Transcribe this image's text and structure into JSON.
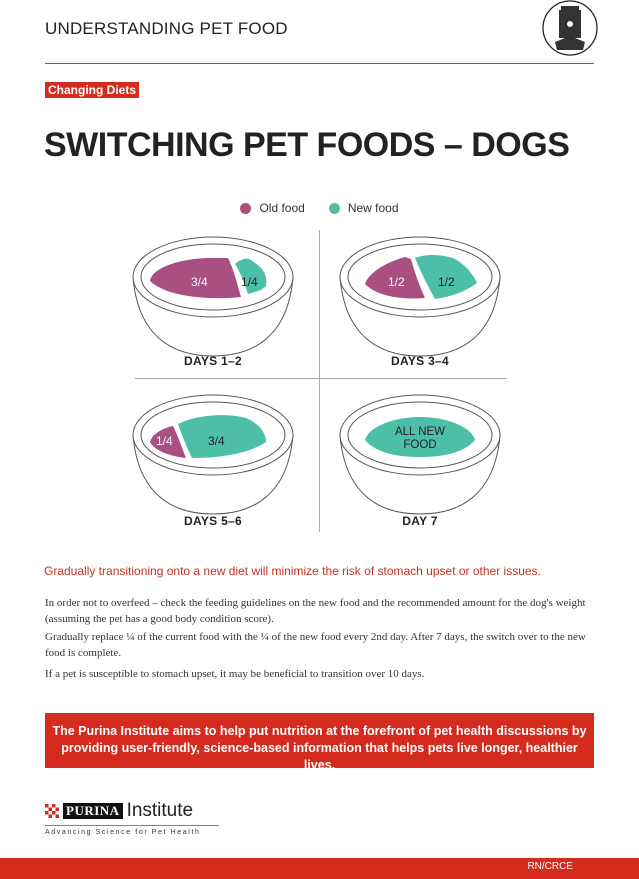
{
  "header": {
    "title": "UNDERSTANDING PET FOOD",
    "icon": "pet-food-bag-icon"
  },
  "badge": "Changing Diets",
  "title": "SWITCHING PET FOODS – DOGS",
  "legend": [
    {
      "label": "Old food",
      "color": "#a94f82"
    },
    {
      "label": "New food",
      "color": "#4dbfa9"
    }
  ],
  "stages": [
    {
      "label": "DAYS 1–2",
      "old": "3/4",
      "new": "1/4",
      "old_fraction": 0.75
    },
    {
      "label": "DAYS 3–4",
      "old": "1/2",
      "new": "1/2",
      "old_fraction": 0.5
    },
    {
      "label": "DAYS 5–6",
      "old": "1/4",
      "new": "3/4",
      "old_fraction": 0.25
    },
    {
      "label": "DAY 7",
      "all": "ALL NEW FOOD",
      "old_fraction": 0
    }
  ],
  "lead": "Gradually transitioning onto a new diet will minimize the risk of stomach upset or other issues.",
  "paragraphs": [
    "In order not to overfeed – check the feeding guidelines on the new food and the recommended amount for the dog's weight (assuming the pet has a good body condition score).",
    "Gradually replace ¼ of the current food with the ¼ of the new food every 2nd day. After 7 days, the switch over to the new food is complete.",
    "If a pet is susceptible to stomach upset, it may be beneficial to transition over 10 days."
  ],
  "callout": "The Purina Institute aims to help put nutrition at the forefront of pet health discussions by providing user-friendly, science-based information that helps pets live longer, healthier lives.",
  "logo": {
    "brand": "PURINA",
    "name": "Institute",
    "tagline": "Advancing Science for Pet Health"
  },
  "footer": {
    "code": "RN/CRCE"
  }
}
